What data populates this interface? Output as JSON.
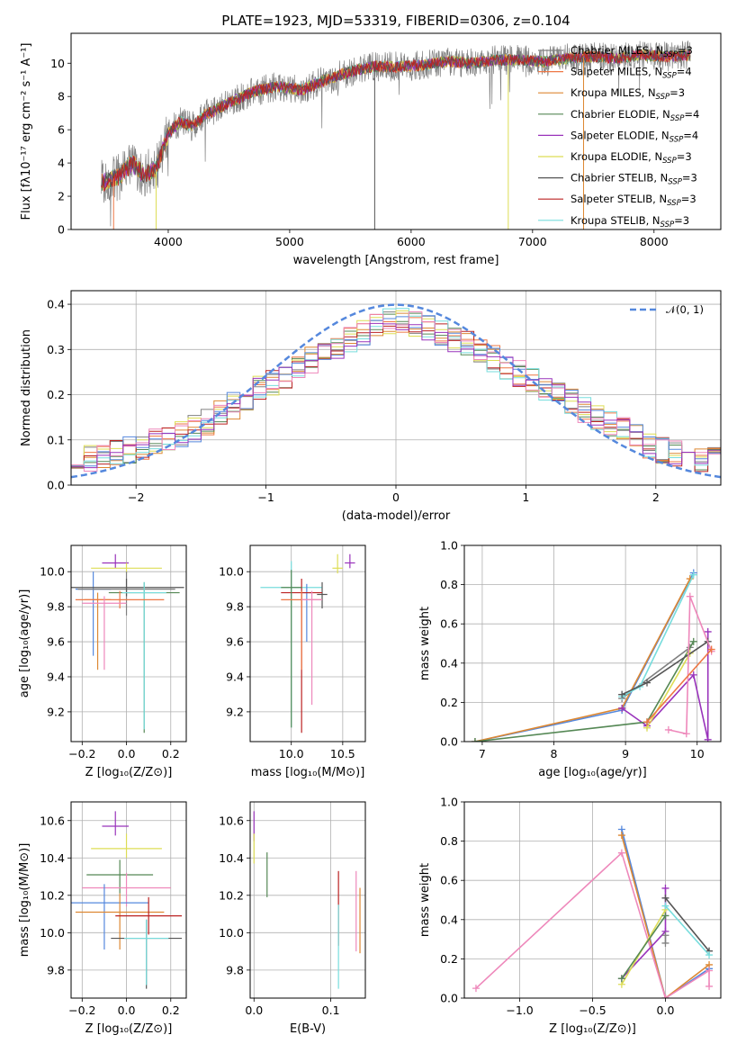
{
  "figure": {
    "title": "PLATE=1923, MJD=53319, FIBERID=0306, z=0.104"
  },
  "palette": [
    "#808080",
    "#ee7744",
    "#dd8833",
    "#558855",
    "#9933bb",
    "#dddd55",
    "#555555",
    "#bb2222",
    "#77dddd",
    "#5588dd",
    "#ee88bb"
  ],
  "chart_data": [
    {
      "id": "spectrum",
      "type": "line",
      "xlabel": "wavelength [Angstrom, rest frame]",
      "ylabel": "Flux [fλ10⁻¹⁷ erg cm⁻² s⁻¹ A⁻¹]",
      "xlim": [
        3200,
        8550
      ],
      "ylim": [
        0,
        11.8
      ],
      "xticks": [
        4000,
        5000,
        6000,
        7000,
        8000
      ],
      "yticks": [
        0,
        2,
        4,
        6,
        8,
        10
      ],
      "grid": false,
      "legend_position": "top-right",
      "data_trend": {
        "x": [
          3450,
          3600,
          3700,
          3800,
          3900,
          4000,
          4100,
          4200,
          4300,
          4500,
          4700,
          4900,
          5100,
          5300,
          5500,
          5700,
          5900,
          6100,
          6300,
          6500,
          6700,
          6900,
          7100,
          7300,
          7500,
          7700,
          7900,
          8100,
          8300
        ],
        "y": [
          2.8,
          3.2,
          4.0,
          3.3,
          3.6,
          5.8,
          6.5,
          6.2,
          6.9,
          7.6,
          8.3,
          8.6,
          8.4,
          9.0,
          9.5,
          9.8,
          9.8,
          9.9,
          10.1,
          10.0,
          10.2,
          10.2,
          10.1,
          10.3,
          10.4,
          10.3,
          10.5,
          10.4,
          10.5
        ]
      },
      "series": [
        {
          "name": "Chabrier MILES, N",
          "nssp": "=3"
        },
        {
          "name": "Salpeter MILES, N",
          "nssp": "=4"
        },
        {
          "name": "Kroupa MILES, N",
          "nssp": "=3"
        },
        {
          "name": "Chabrier ELODIE, N",
          "nssp": "=4"
        },
        {
          "name": "Salpeter ELODIE, N",
          "nssp": "=4"
        },
        {
          "name": "Kroupa ELODIE, N",
          "nssp": "=3"
        },
        {
          "name": "Chabrier STELIB, N",
          "nssp": "=3"
        },
        {
          "name": "Salpeter STELIB, N",
          "nssp": "=3"
        },
        {
          "name": "Kroupa STELIB, N",
          "nssp": "=3"
        }
      ]
    },
    {
      "id": "residuals",
      "type": "line",
      "xlabel": "(data-model)/error",
      "ylabel": "Normed distribution",
      "xlim": [
        -2.5,
        2.5
      ],
      "ylim": [
        0,
        0.43
      ],
      "xticks": [
        -2,
        -1,
        0,
        1,
        2
      ],
      "yticks": [
        0.0,
        0.1,
        0.2,
        0.3,
        0.4
      ],
      "grid": true,
      "legend_position": "top-right",
      "normal_label": "𝒩(0, 1)",
      "bin_width": 0.1,
      "hist_mean_profile": {
        "x": [
          -2.5,
          -2.0,
          -1.5,
          -1.0,
          -0.5,
          0.0,
          0.5,
          1.0,
          1.5,
          2.0,
          2.5
        ],
        "y": [
          0.05,
          0.08,
          0.13,
          0.22,
          0.3,
          0.37,
          0.32,
          0.24,
          0.16,
          0.08,
          0.05
        ]
      }
    },
    {
      "id": "age-vs-Z",
      "type": "scatter",
      "xlabel": "Z [log₁₀(Z/Z⊙)]",
      "ylabel": "age  [log₁₀(age/yr)]",
      "xlim": [
        -0.25,
        0.27
      ],
      "ylim": [
        9.03,
        10.15
      ],
      "xticks": [
        -0.2,
        0.0,
        0.2
      ],
      "yticks": [
        9.2,
        9.4,
        9.6,
        9.8,
        10.0
      ],
      "grid": true,
      "points": [
        {
          "x": -0.05,
          "y": 10.05,
          "xerr": 0.06,
          "yerr": [
            0.03,
            0.05
          ],
          "color": 4
        },
        {
          "x": 0.0,
          "y": 10.02,
          "xerr": 0.16,
          "yerr": [
            0.03,
            0.03
          ],
          "color": 5
        },
        {
          "x": -0.15,
          "y": 9.9,
          "xerr": 0.08,
          "yerr": [
            0.38,
            0.1
          ],
          "color": 9
        },
        {
          "x": 0.0,
          "y": 9.9,
          "xerr": 0.22,
          "yerr": [
            0.15,
            0.1
          ],
          "color": 0
        },
        {
          "x": 0.0,
          "y": 9.91,
          "xerr": 0.26,
          "yerr": [
            0.05,
            0.05
          ],
          "color": 6
        },
        {
          "x": 0.08,
          "y": 9.88,
          "xerr": 0.16,
          "yerr": [
            0.8,
            0.06
          ],
          "color": 3
        },
        {
          "x": 0.08,
          "y": 9.88,
          "xerr": 0.1,
          "yerr": [
            0.78,
            0.06
          ],
          "color": 8
        },
        {
          "x": -0.13,
          "y": 9.84,
          "xerr": 0.06,
          "yerr": [
            0.4,
            0.04
          ],
          "color": 2
        },
        {
          "x": -0.03,
          "y": 9.84,
          "xerr": 0.2,
          "yerr": [
            0.05,
            0.05
          ],
          "color": 1
        },
        {
          "x": -0.1,
          "y": 9.82,
          "xerr": 0.1,
          "yerr": [
            0.38,
            0.04
          ],
          "color": 10
        }
      ]
    },
    {
      "id": "age-vs-mass",
      "type": "scatter",
      "xlabel": "mass [log₁₀(M/M⊙)]",
      "ylabel": "",
      "xlim": [
        9.6,
        10.72
      ],
      "ylim": [
        9.03,
        10.15
      ],
      "xticks": [
        10.0,
        10.5
      ],
      "yticks": [
        9.2,
        9.4,
        9.6,
        9.8,
        10.0
      ],
      "grid": true,
      "points": [
        {
          "x": 10.57,
          "y": 10.05,
          "xerr": 0.05,
          "yerr": [
            0.03,
            0.05
          ],
          "color": 4
        },
        {
          "x": 10.45,
          "y": 10.02,
          "xerr": 0.05,
          "yerr": [
            0.03,
            0.08
          ],
          "color": 5
        },
        {
          "x": 10.0,
          "y": 9.91,
          "xerr": 0.3,
          "yerr": [
            0.8,
            0.15
          ],
          "color": 8
        },
        {
          "x": 10.3,
          "y": 9.87,
          "xerr": 0.05,
          "yerr": [
            0.08,
            0.07
          ],
          "color": 6
        },
        {
          "x": 10.15,
          "y": 9.88,
          "xerr": 0.05,
          "yerr": [
            0.28,
            0.05
          ],
          "color": 9
        },
        {
          "x": 10.1,
          "y": 9.88,
          "xerr": 0.2,
          "yerr": [
            0.8,
            0.08
          ],
          "color": 7
        },
        {
          "x": 10.0,
          "y": 9.91,
          "xerr": 0.1,
          "yerr": [
            0.8,
            0.1
          ],
          "color": 3
        },
        {
          "x": 10.1,
          "y": 9.84,
          "xerr": 0.2,
          "yerr": [
            0.4,
            0.05
          ],
          "color": 1
        },
        {
          "x": 10.2,
          "y": 9.84,
          "xerr": 0.1,
          "yerr": [
            0.6,
            0.05
          ],
          "color": 10
        }
      ]
    },
    {
      "id": "weight-vs-age",
      "type": "line",
      "xlabel": "age  [log₁₀(age/yr)]",
      "ylabel": "mass weight",
      "xlim": [
        6.75,
        10.33
      ],
      "ylim": [
        0,
        1.0
      ],
      "xticks": [
        7,
        8,
        9,
        10
      ],
      "yticks": [
        0.0,
        0.2,
        0.4,
        0.6,
        0.8,
        1.0
      ],
      "grid": true,
      "series": [
        {
          "color": 9,
          "x": [
            6.9,
            8.95,
            9.95
          ],
          "y": [
            0.0,
            0.16,
            0.86
          ]
        },
        {
          "color": 2,
          "x": [
            6.9,
            8.95,
            9.9
          ],
          "y": [
            0.0,
            0.17,
            0.83
          ]
        },
        {
          "color": 0,
          "x": [
            8.95,
            9.9
          ],
          "y": [
            0.22,
            0.48
          ]
        },
        {
          "color": 8,
          "x": [
            8.95,
            9.2,
            9.95
          ],
          "y": [
            0.23,
            0.28,
            0.85
          ]
        },
        {
          "color": 4,
          "x": [
            8.95,
            9.3,
            9.95,
            10.15,
            10.15
          ],
          "y": [
            0.17,
            0.08,
            0.34,
            0.01,
            0.56
          ]
        },
        {
          "color": 3,
          "x": [
            6.9,
            9.3,
            9.95
          ],
          "y": [
            0.0,
            0.1,
            0.51
          ]
        },
        {
          "color": 5,
          "x": [
            9.3,
            9.9
          ],
          "y": [
            0.07,
            0.45
          ]
        },
        {
          "color": 6,
          "x": [
            8.95,
            9.3,
            10.15
          ],
          "y": [
            0.24,
            0.3,
            0.51
          ]
        },
        {
          "color": 10,
          "x": [
            9.6,
            9.85,
            9.9,
            10.2
          ],
          "y": [
            0.06,
            0.04,
            0.74,
            0.46
          ]
        },
        {
          "color": 1,
          "x": [
            9.3,
            10.2
          ],
          "y": [
            0.1,
            0.47
          ]
        }
      ]
    },
    {
      "id": "mass-vs-Z",
      "type": "scatter",
      "xlabel": "Z [log₁₀(Z/Z⊙)]",
      "ylabel": "mass [log₁₀(M/M⊙)]",
      "xlim": [
        -0.25,
        0.27
      ],
      "ylim": [
        9.65,
        10.7
      ],
      "xticks": [
        -0.2,
        0.0,
        0.2
      ],
      "yticks": [
        9.8,
        10.0,
        10.2,
        10.4,
        10.6
      ],
      "grid": true,
      "points": [
        {
          "x": -0.05,
          "y": 10.57,
          "xerr": 0.06,
          "yerr": [
            0.05,
            0.08
          ],
          "color": 4
        },
        {
          "x": 0.0,
          "y": 10.45,
          "xerr": 0.16,
          "yerr": [
            0.05,
            0.08
          ],
          "color": 5
        },
        {
          "x": -0.03,
          "y": 10.31,
          "xerr": 0.15,
          "yerr": [
            0.1,
            0.08
          ],
          "color": 3
        },
        {
          "x": 0.0,
          "y": 10.24,
          "xerr": 0.2,
          "yerr": [
            0.1,
            0.08
          ],
          "color": 10
        },
        {
          "x": -0.1,
          "y": 10.16,
          "xerr": 0.2,
          "yerr": [
            0.25,
            0.1
          ],
          "color": 9
        },
        {
          "x": -0.03,
          "y": 10.11,
          "xerr": 0.2,
          "yerr": [
            0.2,
            0.1
          ],
          "color": 2
        },
        {
          "x": 0.1,
          "y": 10.09,
          "xerr": 0.15,
          "yerr": [
            0.1,
            0.1
          ],
          "color": 7
        },
        {
          "x": 0.09,
          "y": 9.97,
          "xerr": 0.16,
          "yerr": [
            0.27,
            0.1
          ],
          "color": 6
        },
        {
          "x": 0.09,
          "y": 9.97,
          "xerr": 0.1,
          "yerr": [
            0.25,
            0.1
          ],
          "color": 8
        }
      ]
    },
    {
      "id": "mass-vs-ebv",
      "type": "scatter",
      "xlabel": "E(B-V)",
      "ylabel": "",
      "xlim": [
        -0.005,
        0.145
      ],
      "ylim": [
        9.65,
        10.7
      ],
      "xticks": [
        0.0,
        0.1
      ],
      "yticks": [
        9.8,
        10.0,
        10.2,
        10.4,
        10.6
      ],
      "grid": true,
      "points": [
        {
          "x": 0.0,
          "y": 10.57,
          "xerr": 0,
          "yerr": [
            0.08,
            0.08
          ],
          "color": 4
        },
        {
          "x": 0.0,
          "y": 10.45,
          "xerr": 0,
          "yerr": [
            0.08,
            0.08
          ],
          "color": 5
        },
        {
          "x": 0.017,
          "y": 10.31,
          "xerr": 0,
          "yerr": [
            0.12,
            0.12
          ],
          "color": 3
        },
        {
          "x": 0.11,
          "y": 10.15,
          "xerr": 0,
          "yerr": [
            0.22,
            0.18
          ],
          "color": 7
        },
        {
          "x": 0.11,
          "y": 9.97,
          "xerr": 0,
          "yerr": [
            0.27,
            0.18
          ],
          "color": 8
        },
        {
          "x": 0.133,
          "y": 10.1,
          "xerr": 0,
          "yerr": [
            0.2,
            0.23
          ],
          "color": 10
        },
        {
          "x": 0.138,
          "y": 10.07,
          "xerr": 0,
          "yerr": [
            0.18,
            0.17
          ],
          "color": 2
        }
      ]
    },
    {
      "id": "weight-vs-Z",
      "type": "line",
      "xlabel": "Z [log₁₀(Z/Z⊙)]",
      "ylabel": "mass weight",
      "xlim": [
        -1.38,
        0.38
      ],
      "ylim": [
        0,
        1.0
      ],
      "xticks": [
        -1.0,
        -0.5,
        0.0
      ],
      "yticks": [
        0.0,
        0.2,
        0.4,
        0.6,
        0.8,
        1.0
      ],
      "grid": true,
      "series": [
        {
          "color": 9,
          "x": [
            -0.3,
            0.0,
            0.3
          ],
          "y": [
            0.86,
            0.0,
            0.15
          ]
        },
        {
          "color": 2,
          "x": [
            -0.3,
            0.0,
            0.3
          ],
          "y": [
            0.83,
            0.0,
            0.17
          ]
        },
        {
          "color": 10,
          "x": [
            -1.3,
            -0.3,
            0.0,
            0.3,
            0.3
          ],
          "y": [
            0.05,
            0.74,
            0.0,
            0.14,
            0.06
          ]
        },
        {
          "color": 4,
          "x": [
            -0.3,
            0.0,
            0.0
          ],
          "y": [
            0.1,
            0.34,
            0.56
          ]
        },
        {
          "color": 5,
          "x": [
            -0.3,
            0.0
          ],
          "y": [
            0.07,
            0.45
          ]
        },
        {
          "color": 3,
          "x": [
            -0.3,
            0.0
          ],
          "y": [
            0.1,
            0.42
          ]
        },
        {
          "color": 6,
          "x": [
            0.0,
            0.3
          ],
          "y": [
            0.51,
            0.24
          ]
        },
        {
          "color": 8,
          "x": [
            0.0,
            0.3
          ],
          "y": [
            0.47,
            0.22
          ]
        },
        {
          "color": 0,
          "x": [
            0.0,
            0.0
          ],
          "y": [
            0.28,
            0.32
          ]
        }
      ]
    }
  ]
}
